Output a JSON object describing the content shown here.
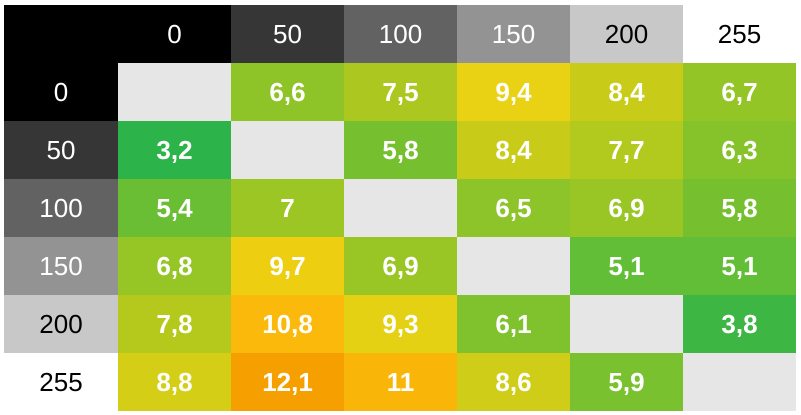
{
  "chart_data": {
    "type": "heatmap",
    "title": "",
    "xlabel": "",
    "ylabel": "",
    "x_categories": [
      "0",
      "50",
      "100",
      "150",
      "200",
      "255"
    ],
    "y_categories": [
      "0",
      "50",
      "100",
      "150",
      "200",
      "255"
    ],
    "values": [
      [
        null,
        "6,6",
        "7,5",
        "9,4",
        "8,4",
        "6,7"
      ],
      [
        "3,2",
        null,
        "5,8",
        "8,4",
        "7,7",
        "6,3"
      ],
      [
        "5,4",
        "7",
        null,
        "6,5",
        "6,9",
        "5,8"
      ],
      [
        "6,8",
        "9,7",
        "6,9",
        null,
        "5,1",
        "5,1"
      ],
      [
        "7,8",
        "10,8",
        "9,3",
        "6,1",
        null,
        "3,8"
      ],
      [
        "8,8",
        "12,1",
        "11",
        "8,6",
        "5,9",
        null
      ]
    ],
    "header_colors": [
      "#000000",
      "#363636",
      "#626262",
      "#939393",
      "#c8c8c8",
      "#ffffff"
    ],
    "empty_color": "#e6e6e6",
    "color_scale": [
      {
        "value": 3.2,
        "color": "#2cb34a"
      },
      {
        "value": 5.5,
        "color": "#6dbf33"
      },
      {
        "value": 7.0,
        "color": "#9cc624"
      },
      {
        "value": 8.4,
        "color": "#c8cc18"
      },
      {
        "value": 9.5,
        "color": "#ecd212"
      },
      {
        "value": 10.8,
        "color": "#fbb90b"
      },
      {
        "value": 12.1,
        "color": "#f5a000"
      }
    ]
  }
}
